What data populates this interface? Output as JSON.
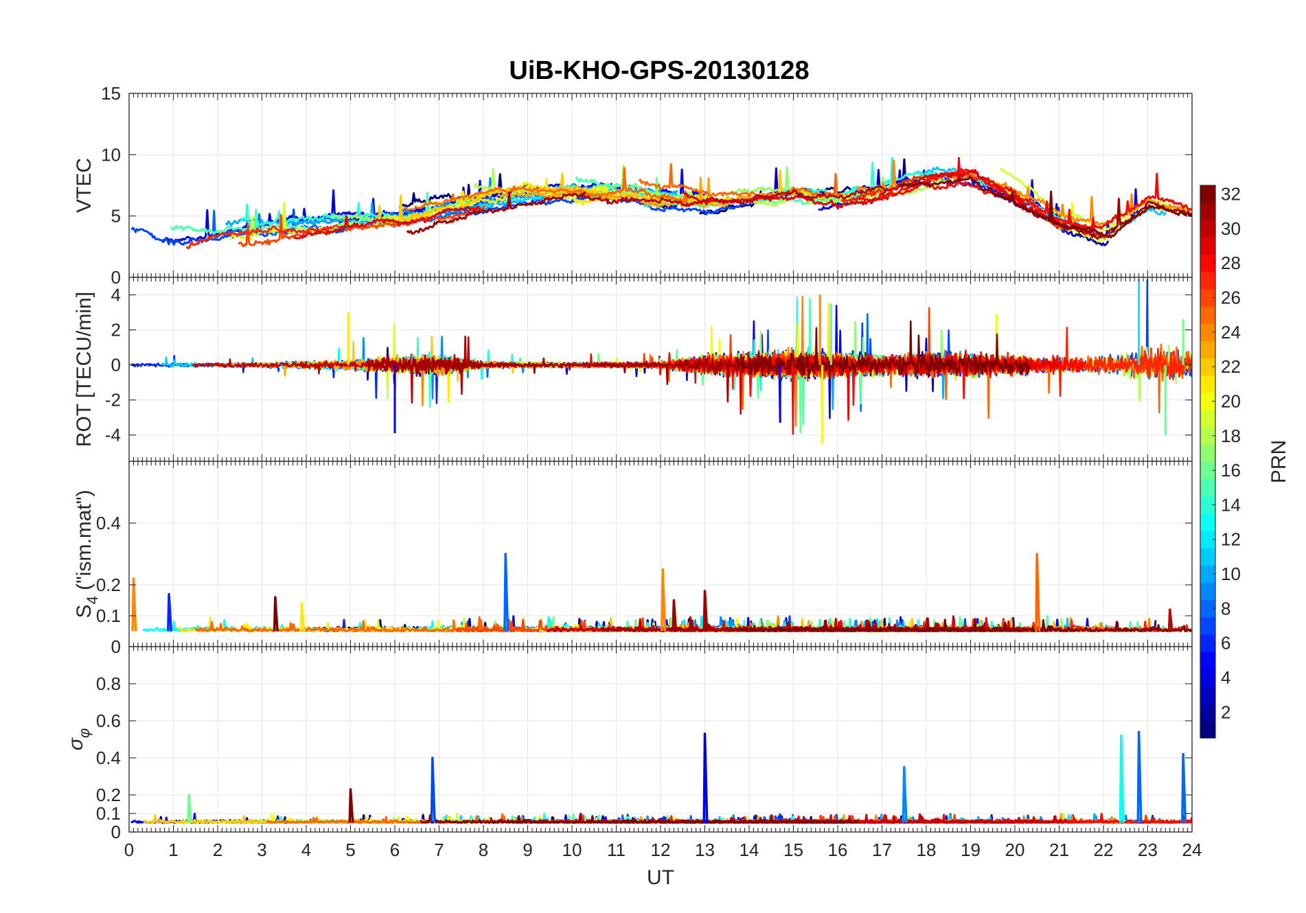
{
  "figure": {
    "title": "UiB-KHO-GPS-20130128"
  },
  "chart_data": [
    {
      "type": "line",
      "panel": "vtec",
      "ylabel": "VTEC",
      "xlim": [
        0,
        24
      ],
      "ylim": [
        0,
        15
      ],
      "yticks": [
        0,
        5,
        10,
        15
      ],
      "grid": true,
      "series_description_note": "",
      "profile": [
        [
          0,
          4.2
        ],
        [
          1,
          3.6
        ],
        [
          2,
          3.8
        ],
        [
          3,
          4.1
        ],
        [
          4,
          4.3
        ],
        [
          5,
          4.6
        ],
        [
          6,
          5.0
        ],
        [
          7,
          5.5
        ],
        [
          8,
          6.2
        ],
        [
          9,
          6.8
        ],
        [
          10,
          7.0
        ],
        [
          11,
          6.9
        ],
        [
          12,
          6.4
        ],
        [
          13,
          6.3
        ],
        [
          14,
          6.6
        ],
        [
          15,
          6.9
        ],
        [
          16,
          6.5
        ],
        [
          17,
          7.2
        ],
        [
          18,
          8.2
        ],
        [
          19,
          8.4
        ],
        [
          20,
          6.8
        ],
        [
          21,
          4.6
        ],
        [
          22,
          3.6
        ],
        [
          23,
          6.0
        ],
        [
          24,
          5.2
        ]
      ]
    },
    {
      "type": "line",
      "panel": "rot",
      "ylabel": "ROT [TECU/min]",
      "xlim": [
        0,
        24
      ],
      "ylim": [
        -5.5,
        5
      ],
      "yticks": [
        -4,
        -2,
        0,
        2,
        4
      ],
      "grid": true,
      "activity": [
        [
          0,
          0.15
        ],
        [
          3,
          0.2
        ],
        [
          5,
          0.4
        ],
        [
          6,
          0.7
        ],
        [
          7,
          0.9
        ],
        [
          8,
          0.25
        ],
        [
          10,
          0.18
        ],
        [
          12,
          0.25
        ],
        [
          13,
          0.8
        ],
        [
          14,
          0.9
        ],
        [
          15,
          1.2
        ],
        [
          16,
          1.0
        ],
        [
          17,
          0.8
        ],
        [
          18,
          1.0
        ],
        [
          19,
          1.0
        ],
        [
          20,
          0.8
        ],
        [
          21,
          0.6
        ],
        [
          22,
          0.8
        ],
        [
          23,
          1.5
        ],
        [
          24,
          1.2
        ]
      ],
      "peaks": [
        [
          4.95,
          3.0
        ],
        [
          6.0,
          -3.9
        ],
        [
          14.7,
          -3.3
        ],
        [
          15.6,
          4.0
        ],
        [
          15.65,
          -4.5
        ],
        [
          15.85,
          3.5
        ],
        [
          22.8,
          4.9
        ],
        [
          23.4,
          -4.0
        ],
        [
          23.8,
          2.6
        ]
      ]
    },
    {
      "type": "line",
      "panel": "s4",
      "ylabel": "S",
      "ylabel_sub": "4",
      "ylabel_suffix": " (\"ism.mat\")",
      "xlim": [
        0,
        24
      ],
      "ylim": [
        0,
        0.6
      ],
      "yticks": [
        0,
        0.1,
        0.2,
        0.4
      ],
      "ytick_labels": [
        "0",
        "0.1",
        "0.2",
        "0.4"
      ],
      "grid": true,
      "baseline": 0.05,
      "peaks": [
        [
          0.1,
          0.22
        ],
        [
          0.9,
          0.17
        ],
        [
          3.3,
          0.16
        ],
        [
          3.9,
          0.14
        ],
        [
          8.5,
          0.3
        ],
        [
          12.05,
          0.25
        ],
        [
          12.3,
          0.15
        ],
        [
          13.0,
          0.18
        ],
        [
          20.5,
          0.3
        ],
        [
          23.5,
          0.12
        ]
      ]
    },
    {
      "type": "line",
      "panel": "sigma_phi",
      "ylabel": "σ",
      "ylabel_sub": "φ",
      "xlabel": "UT",
      "xlim": [
        0,
        24
      ],
      "ylim": [
        0,
        1
      ],
      "yticks": [
        0,
        0.1,
        0.2,
        0.4,
        0.6,
        0.8
      ],
      "ytick_labels": [
        "0",
        "0.1",
        "0.2",
        "0.4",
        "0.6",
        "0.8"
      ],
      "xticks": [
        0,
        1,
        2,
        3,
        4,
        5,
        6,
        7,
        8,
        9,
        10,
        11,
        12,
        13,
        14,
        15,
        16,
        17,
        18,
        19,
        20,
        21,
        22,
        23,
        24
      ],
      "grid": true,
      "baseline": 0.05,
      "peaks": [
        [
          1.35,
          0.2
        ],
        [
          5.0,
          0.23
        ],
        [
          6.85,
          0.4
        ],
        [
          13.0,
          0.53
        ],
        [
          17.5,
          0.35
        ],
        [
          22.4,
          0.52
        ],
        [
          22.8,
          0.54
        ],
        [
          23.8,
          0.42
        ]
      ]
    }
  ],
  "colorbar": {
    "label": "PRN",
    "range": [
      1,
      32
    ],
    "ticks": [
      2,
      4,
      6,
      8,
      10,
      12,
      14,
      16,
      18,
      20,
      22,
      24,
      26,
      28,
      30,
      32
    ],
    "colormap": "jet"
  }
}
